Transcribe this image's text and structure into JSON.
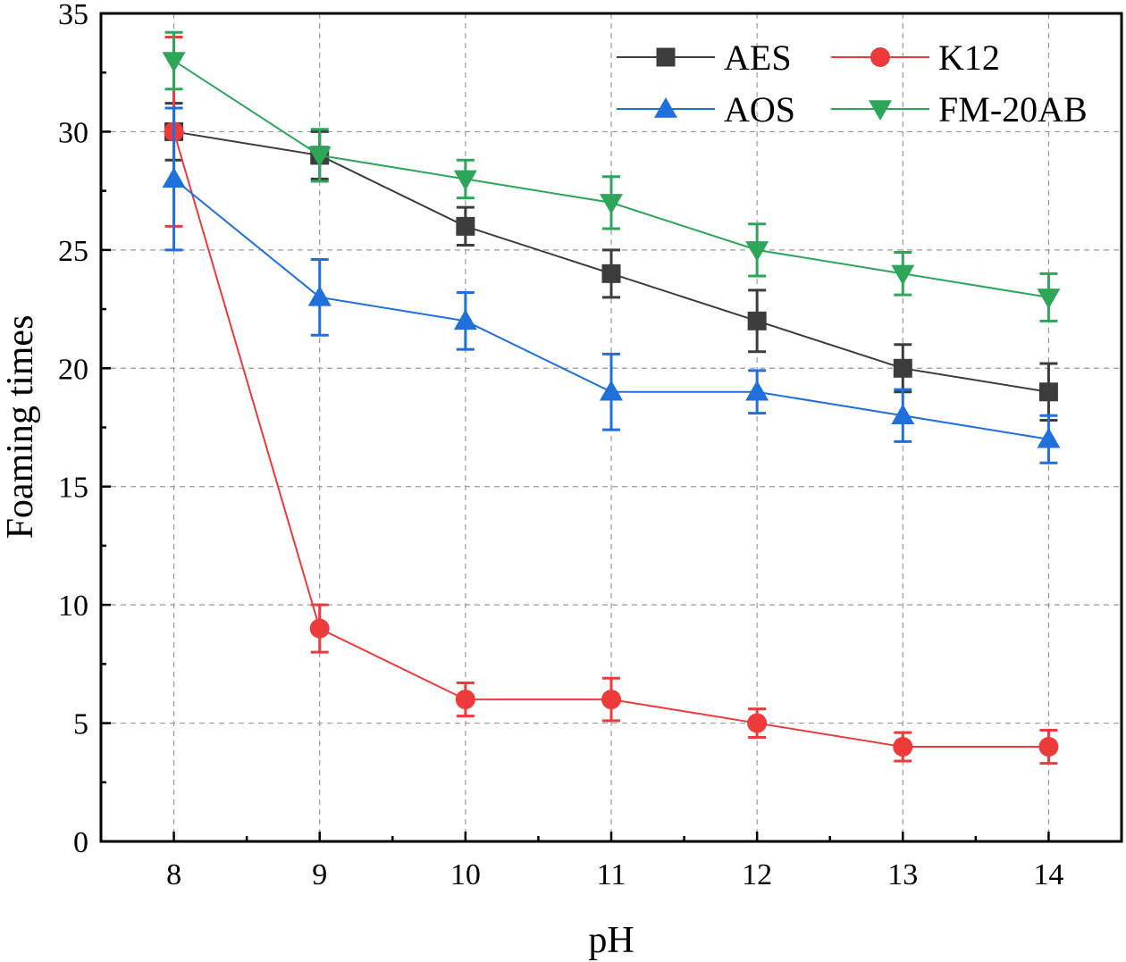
{
  "chart_data": {
    "type": "line",
    "title": "",
    "xlabel": "pH",
    "ylabel": "Foaming times",
    "x": [
      8,
      9,
      10,
      11,
      12,
      13,
      14
    ],
    "xlim": [
      7.5,
      14.5
    ],
    "ylim": [
      0,
      35
    ],
    "yticks": [
      0,
      5,
      10,
      15,
      20,
      25,
      30,
      35
    ],
    "xticks": [
      8,
      9,
      10,
      11,
      12,
      13,
      14
    ],
    "grid": true,
    "legend_position": "top-right",
    "series": [
      {
        "name": "AES",
        "color": "#3c3c3c",
        "marker": "square",
        "values": [
          30,
          29,
          26,
          24,
          22,
          20,
          19
        ],
        "errors": [
          1.2,
          1.0,
          0.8,
          1.0,
          1.3,
          1.0,
          1.2
        ]
      },
      {
        "name": "K12",
        "color": "#ee3a3a",
        "marker": "circle",
        "values": [
          30,
          9,
          6,
          6,
          5,
          4,
          4
        ],
        "errors": [
          4.0,
          1.0,
          0.7,
          0.9,
          0.6,
          0.6,
          0.7
        ]
      },
      {
        "name": "AOS",
        "color": "#1f6fdc",
        "marker": "triangle-up",
        "values": [
          28,
          23,
          22,
          19,
          19,
          18,
          17
        ],
        "errors": [
          3.0,
          1.6,
          1.2,
          1.6,
          0.9,
          1.1,
          1.0
        ]
      },
      {
        "name": "FM-20AB",
        "color": "#2ea65a",
        "marker": "triangle-down",
        "values": [
          33,
          29,
          28,
          27,
          25,
          24,
          23
        ],
        "errors": [
          1.2,
          1.1,
          0.8,
          1.1,
          1.1,
          0.9,
          1.0
        ]
      }
    ]
  }
}
